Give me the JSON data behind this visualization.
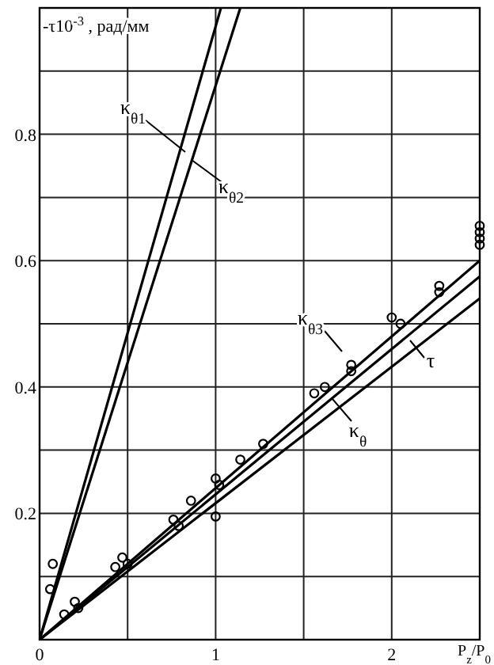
{
  "chart_data": {
    "type": "line",
    "ylabel": "-τ10$^{-3}$ , рад/мм",
    "xlabel": "P$_{z}$/P$_{0}$",
    "xlim": [
      0,
      2.5
    ],
    "ylim": [
      0,
      1
    ],
    "xticks": [
      0,
      {
        "value": 0.5,
        "label": null
      },
      1,
      {
        "value": 1.5,
        "label": null
      },
      2,
      {
        "value": 2.5,
        "label": null
      }
    ],
    "yticks": [
      {
        "value": 0,
        "label": null
      },
      {
        "value": 0.1,
        "label": null
      },
      0.2,
      {
        "value": 0.3,
        "label": null
      },
      0.4,
      {
        "value": 0.5,
        "label": null
      },
      0.6,
      {
        "value": 0.7,
        "label": null
      },
      0.8,
      {
        "value": 0.9,
        "label": null
      },
      {
        "value": 1,
        "label": null
      }
    ],
    "grid": true,
    "legend": "center",
    "marker": "none",
    "line_style": "solid",
    "series": [
      {
        "name": "κ$_{θ1}$",
        "color": "#000000",
        "x": [
          0,
          1.03
        ],
        "values": [
          0,
          1
        ]
      },
      {
        "name": "κ$_{θ2}$",
        "color": "#000000",
        "x": [
          0,
          1.14
        ],
        "values": [
          0,
          1
        ]
      },
      {
        "name": "κ$_{θ3}$",
        "color": "#000000",
        "x": [
          0,
          2.5
        ],
        "values": [
          0,
          0.6
        ]
      },
      {
        "name": "κ$_{θ}$",
        "color": "#000000",
        "x": [
          0,
          2.5
        ],
        "values": [
          0,
          0.575
        ]
      },
      {
        "name": "τ",
        "color": "#000000",
        "x": [
          0,
          2.5
        ],
        "values": [
          0,
          0.54
        ]
      },
      {
        "type": "scatter",
        "marker": "circle",
        "color": "#000000",
        "x": [
          0.06,
          0.075,
          0.14,
          0.2,
          0.22,
          0.43,
          0.47,
          0.5,
          0.76,
          0.79,
          0.86,
          1.0,
          1.02,
          1.0,
          1.14,
          1.27,
          1.56,
          1.62,
          1.77,
          1.77,
          2.0,
          2.05,
          2.27,
          2.27,
          2.5,
          2.5,
          2.5,
          2.5
        ],
        "values": [
          0.08,
          0.12,
          0.04,
          0.06,
          0.05,
          0.115,
          0.13,
          0.12,
          0.19,
          0.18,
          0.22,
          0.255,
          0.245,
          0.195,
          0.285,
          0.31,
          0.39,
          0.4,
          0.435,
          0.425,
          0.51,
          0.5,
          0.56,
          0.55,
          0.655,
          0.645,
          0.635,
          0.625
        ]
      }
    ]
  }
}
